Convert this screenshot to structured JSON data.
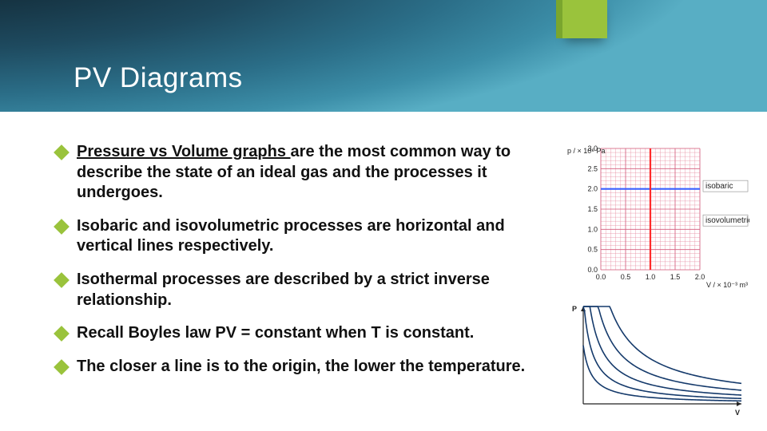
{
  "header": {
    "title": "PV Diagrams",
    "accent_color": "#9ac33c",
    "bg_gradient_from": "#0c1a22",
    "bg_gradient_to": "#58aec4"
  },
  "bullets": [
    {
      "underlined_lead": "Pressure vs Volume graphs ",
      "rest": "are the most common way to describe the state of an ideal gas and the processes it undergoes."
    },
    {
      "underlined_lead": "",
      "rest": "Isobaric and isovolumetric processes are horizontal and vertical lines respectively."
    },
    {
      "underlined_lead": "",
      "rest": "Isothermal processes are described by a strict inverse relationship."
    },
    {
      "underlined_lead": "",
      "rest": "Recall Boyles law PV = constant when T is constant."
    },
    {
      "underlined_lead": "",
      "rest": "The closer a line is to the origin, the lower the temperature."
    }
  ],
  "chart1": {
    "type": "line",
    "xlabel": "V / × 10⁻³ m³",
    "ylabel": "p / × 10⁵ Pa",
    "xlim": [
      0.0,
      2.0
    ],
    "ylim": [
      0.0,
      3.0
    ],
    "xtick_step": 0.5,
    "ytick_step": 0.5,
    "xtick_labels": [
      "0.0",
      "0.5",
      "1.0",
      "1.5",
      "2.0"
    ],
    "ytick_labels": [
      "0.0",
      "0.5",
      "1.0",
      "1.5",
      "2.0",
      "2.5",
      "3.0"
    ],
    "grid_minor_step_x": 0.1,
    "grid_minor_step_y": 0.1,
    "grid_minor_color": "#e68aa0",
    "grid_major_color": "#d46080",
    "background_color": "#ffffff",
    "series": [
      {
        "name": "isobaric",
        "label": "isobaric",
        "color": "#3a60ff",
        "line_width": 2.2,
        "points": [
          [
            0.0,
            2.0
          ],
          [
            2.0,
            2.0
          ]
        ],
        "label_pos": [
          2.05,
          2.05
        ]
      },
      {
        "name": "isovolumetric",
        "label": "isovolumetric",
        "color": "#ff2a2a",
        "line_width": 2.2,
        "points": [
          [
            1.0,
            0.0
          ],
          [
            1.0,
            3.0
          ]
        ],
        "label_pos": [
          2.05,
          1.2
        ]
      }
    ],
    "label_fontsize": 10,
    "tick_fontsize": 9
  },
  "chart2": {
    "type": "line",
    "xlabel": "V",
    "ylabel": "P",
    "xlim": [
      0.05,
      1.0
    ],
    "ylim": [
      0.0,
      1.0
    ],
    "background_color": "#ffffff",
    "axis_color": "#222222",
    "curves": [
      {
        "k": 0.03,
        "color": "#153a6b",
        "line_width": 1.6
      },
      {
        "k": 0.055,
        "color": "#153a6b",
        "line_width": 1.6
      },
      {
        "k": 0.09,
        "color": "#153a6b",
        "line_width": 1.6
      },
      {
        "k": 0.14,
        "color": "#153a6b",
        "line_width": 1.6
      },
      {
        "k": 0.21,
        "color": "#153a6b",
        "line_width": 1.6
      }
    ],
    "axis_label_fontsize": 10
  }
}
